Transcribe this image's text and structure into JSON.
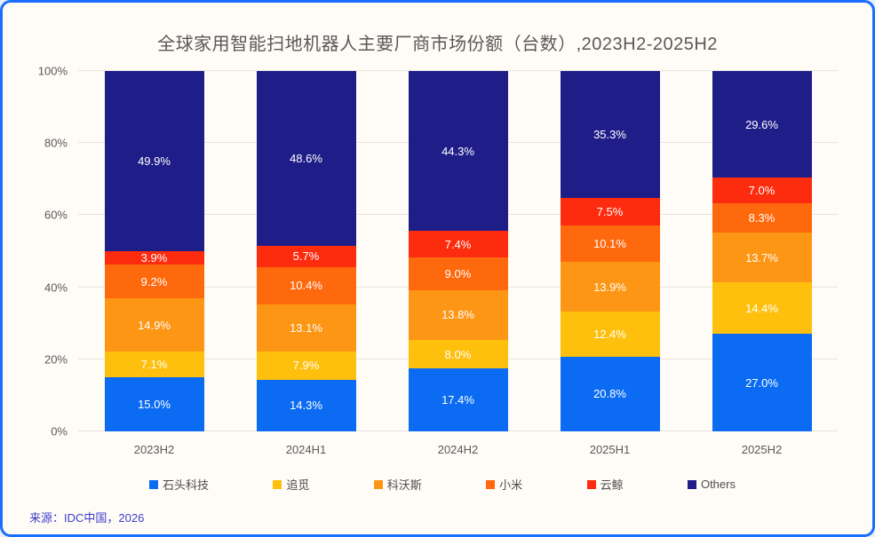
{
  "window": {
    "background": "#fffcf7",
    "border_color": "#1a6eff"
  },
  "chart_data": {
    "type": "bar",
    "stacked": true,
    "title": "全球家用智能扫地机器人主要厂商市场份额（台数）,2023H2-2025H2",
    "categories": [
      "2023H2",
      "2024H1",
      "2024H2",
      "2025H1",
      "2025H2"
    ],
    "series": [
      {
        "name": "石头科技",
        "color": "#0b6cf3",
        "values": [
          15.0,
          14.3,
          17.4,
          20.8,
          27.0
        ]
      },
      {
        "name": "追觅",
        "color": "#ffc00d",
        "values": [
          7.1,
          7.9,
          8.0,
          12.4,
          14.4
        ]
      },
      {
        "name": "科沃斯",
        "color": "#fe9615",
        "values": [
          14.9,
          13.1,
          13.8,
          13.9,
          13.7
        ]
      },
      {
        "name": "小米",
        "color": "#ff690e",
        "values": [
          9.2,
          10.4,
          9.0,
          10.1,
          8.3
        ]
      },
      {
        "name": "云鲸",
        "color": "#fd2c0e",
        "values": [
          3.9,
          5.7,
          7.4,
          7.5,
          7.0
        ]
      },
      {
        "name": "Others",
        "color": "#1f1e89",
        "values": [
          49.9,
          48.6,
          44.3,
          35.3,
          29.6
        ]
      }
    ],
    "ylim": [
      0,
      100
    ],
    "yticks": [
      "0%",
      "20%",
      "40%",
      "60%",
      "80%",
      "100%"
    ],
    "grid": true,
    "legend_position": "bottom",
    "label_format": "one-decimal-percent"
  },
  "footer": {
    "source": "来源：IDC中国，2026"
  }
}
